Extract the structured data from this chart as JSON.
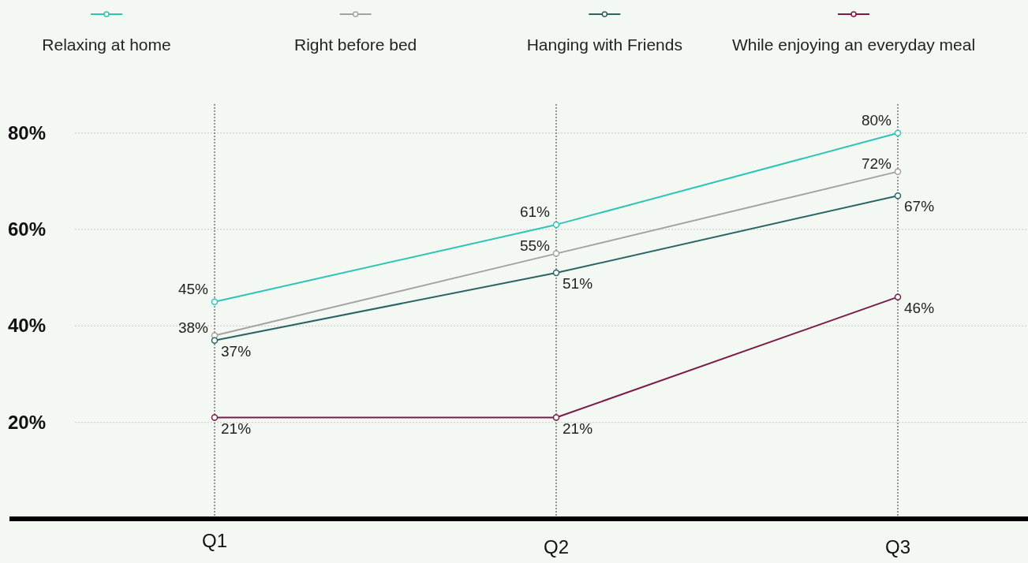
{
  "chart_data": {
    "type": "line",
    "categories": [
      "Q1",
      "Q2",
      "Q3"
    ],
    "series": [
      {
        "name": "Relaxing at home",
        "color": "#2ec4b6",
        "values": [
          45,
          61,
          80
        ],
        "value_labels": [
          "45%",
          "61%",
          "80%"
        ]
      },
      {
        "name": "Right before bed",
        "color": "#a3a3a3",
        "values": [
          38,
          55,
          72
        ],
        "value_labels": [
          "38%",
          "55%",
          "72%"
        ]
      },
      {
        "name": "Hanging with Friends",
        "color": "#2a6465",
        "values": [
          37,
          51,
          67
        ],
        "value_labels": [
          "37%",
          "51%",
          "67%"
        ]
      },
      {
        "name": "While enjoying an everyday meal",
        "color": "#7a1a48",
        "values": [
          21,
          21,
          46
        ],
        "value_labels": [
          "21%",
          "21%",
          "46%"
        ]
      }
    ],
    "ylim": [
      0,
      86
    ],
    "yticks": [
      {
        "value": 20,
        "label": "20%"
      },
      {
        "value": 40,
        "label": "40%"
      },
      {
        "value": 60,
        "label": "60%"
      },
      {
        "value": 80,
        "label": "80%"
      }
    ],
    "grid": true,
    "legend": "top",
    "marker": "circle",
    "line_style": "solid"
  }
}
